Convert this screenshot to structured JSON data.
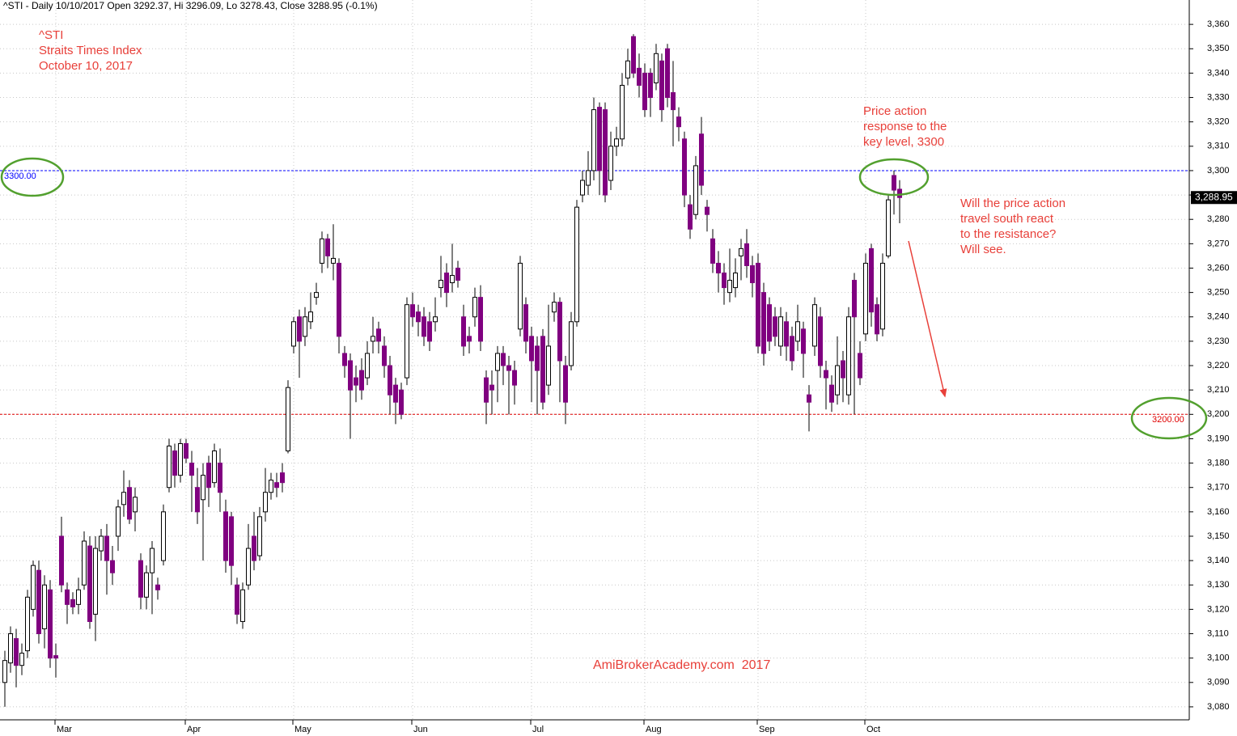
{
  "chart_data": {
    "type": "candlestick",
    "header": "^STI - Daily 10/10/2017 Open 3292.37, Hi 3296.09, Lo 3278.43, Close 3288.95 (-0.1%)",
    "title_lines": [
      "^STI",
      "Straits Times Index",
      "October 10, 2017"
    ],
    "annotations": [
      {
        "lines": [
          "Price action",
          "response to the",
          "key level, 3300"
        ]
      },
      {
        "lines": [
          "Will the price action",
          "travel south react",
          "to the resistance?",
          "Will see."
        ]
      }
    ],
    "watermark": "AmiBrokerAcademy.com  2017",
    "up_color": "#ffffff",
    "down_color": "#800080",
    "categories": [
      null,
      null,
      null,
      null,
      null,
      null,
      null,
      null,
      null,
      "Mar",
      null,
      null,
      null,
      null,
      null,
      null,
      null,
      null,
      null,
      null,
      null,
      null,
      null,
      null,
      null,
      null,
      null,
      null,
      null,
      null,
      null,
      null,
      "Apr",
      null,
      null,
      null,
      null,
      null,
      null,
      null,
      null,
      null,
      null,
      null,
      null,
      null,
      null,
      null,
      null,
      null,
      null,
      "May",
      null,
      null,
      null,
      null,
      null,
      null,
      null,
      null,
      null,
      null,
      null,
      null,
      null,
      null,
      null,
      null,
      null,
      null,
      null,
      null,
      "Jun",
      null,
      null,
      null,
      null,
      null,
      null,
      null,
      null,
      null,
      null,
      null,
      null,
      null,
      null,
      null,
      null,
      null,
      null,
      null,
      null,
      "Jul",
      null,
      null,
      null,
      null,
      null,
      null,
      null,
      null,
      null,
      null,
      null,
      null,
      null,
      null,
      null,
      null,
      null,
      null,
      null,
      "Aug",
      null,
      null,
      null,
      null,
      null,
      null,
      null,
      null,
      null,
      null,
      null,
      null,
      null,
      null,
      null,
      null,
      null,
      null,
      null,
      "Sep",
      null,
      null,
      null,
      null,
      null,
      null,
      null,
      null,
      null,
      null,
      null,
      null,
      null,
      null,
      null,
      null,
      null,
      null,
      "Oct",
      null,
      null,
      null,
      null,
      null,
      null
    ],
    "open": [
      3090,
      3098,
      3108,
      3097,
      3103,
      3120,
      3136,
      3112,
      3128,
      3101,
      3150,
      3128,
      3124,
      3122,
      3130,
      3146,
      3118,
      3144,
      3150,
      3140,
      3150,
      3163,
      3170,
      3160,
      3140,
      3125,
      3135,
      3130,
      3140,
      3170,
      3185,
      3175,
      3188,
      3180,
      3170,
      3165,
      3180,
      3172,
      3180,
      3160,
      3158,
      3130,
      3115,
      3130,
      3150,
      3142,
      3160,
      3168,
      3172,
      3176,
      3185,
      3228,
      3240,
      3232,
      3238,
      3248,
      3262,
      3272,
      3262,
      3262,
      3225,
      3222,
      3215,
      3218,
      3215,
      3230,
      3235,
      3228,
      3220,
      3212,
      3210,
      3215,
      3245,
      3242,
      3240,
      3238,
      3238,
      3252,
      3258,
      3254,
      3260,
      3240,
      3232,
      3240,
      3248,
      3215,
      3212,
      3218,
      3225,
      3220,
      3218,
      3235,
      3245,
      3232,
      3228,
      3232,
      3212,
      3242,
      3246,
      3220,
      3220,
      3238,
      3290,
      3294,
      3300,
      3326,
      3325,
      3296,
      3310,
      3313,
      3338,
      3355,
      3342,
      3340,
      3340,
      3336,
      3345,
      3350,
      3332,
      3322,
      3313,
      3286,
      3282,
      3315,
      3285,
      3272,
      3262,
      3258,
      3250,
      3252,
      3265,
      3270,
      3261,
      3262,
      3250,
      3245,
      3240,
      3228,
      3238,
      3232,
      3230,
      3235,
      3208,
      3228,
      3240,
      3218,
      3212,
      3208,
      3222,
      3208,
      3255,
      3225,
      3233,
      3268,
      3245,
      3235,
      3265,
      3298,
      3292.37
    ],
    "high": [
      3103,
      3113,
      3112,
      3106,
      3128,
      3140,
      3140,
      3134,
      3132,
      3106,
      3158,
      3131,
      3127,
      3133,
      3152,
      3150,
      3150,
      3153,
      3155,
      3146,
      3165,
      3177,
      3173,
      3170,
      3143,
      3138,
      3148,
      3133,
      3163,
      3190,
      3188,
      3190,
      3190,
      3185,
      3178,
      3180,
      3183,
      3188,
      3186,
      3165,
      3160,
      3133,
      3131,
      3155,
      3160,
      3162,
      3178,
      3176,
      3176,
      3180,
      3214,
      3240,
      3243,
      3244,
      3250,
      3254,
      3275,
      3274,
      3278,
      3264,
      3228,
      3225,
      3220,
      3223,
      3230,
      3240,
      3238,
      3232,
      3224,
      3215,
      3213,
      3248,
      3250,
      3245,
      3244,
      3242,
      3248,
      3265,
      3262,
      3270,
      3263,
      3245,
      3236,
      3252,
      3253,
      3218,
      3218,
      3228,
      3228,
      3224,
      3222,
      3265,
      3248,
      3236,
      3232,
      3235,
      3245,
      3250,
      3248,
      3224,
      3242,
      3288,
      3300,
      3308,
      3330,
      3328,
      3328,
      3316,
      3318,
      3340,
      3350,
      3356,
      3348,
      3344,
      3342,
      3352,
      3348,
      3352,
      3345,
      3326,
      3316,
      3290,
      3306,
      3322,
      3288,
      3276,
      3267,
      3262,
      3268,
      3264,
      3272,
      3276,
      3265,
      3266,
      3254,
      3248,
      3244,
      3244,
      3242,
      3236,
      3245,
      3238,
      3212,
      3248,
      3244,
      3222,
      3216,
      3232,
      3226,
      3244,
      3258,
      3230,
      3266,
      3270,
      3248,
      3266,
      3290,
      3300,
      3296.09
    ],
    "low": [
      3080,
      3094,
      3088,
      3093,
      3100,
      3117,
      3106,
      3104,
      3096,
      3092,
      3127,
      3114,
      3118,
      3118,
      3128,
      3112,
      3107,
      3140,
      3126,
      3130,
      3144,
      3158,
      3155,
      3152,
      3120,
      3120,
      3118,
      3124,
      3138,
      3168,
      3170,
      3172,
      3180,
      3160,
      3155,
      3140,
      3162,
      3170,
      3160,
      3135,
      3130,
      3114,
      3112,
      3128,
      3136,
      3140,
      3156,
      3165,
      3166,
      3168,
      3184,
      3225,
      3215,
      3228,
      3235,
      3245,
      3258,
      3260,
      3255,
      3225,
      3215,
      3190,
      3205,
      3206,
      3212,
      3225,
      3225,
      3215,
      3200,
      3196,
      3198,
      3212,
      3236,
      3232,
      3228,
      3226,
      3234,
      3248,
      3244,
      3250,
      3252,
      3224,
      3225,
      3236,
      3226,
      3196,
      3200,
      3205,
      3212,
      3200,
      3204,
      3232,
      3225,
      3205,
      3200,
      3202,
      3208,
      3238,
      3205,
      3196,
      3218,
      3236,
      3287,
      3290,
      3296,
      3290,
      3287,
      3292,
      3306,
      3310,
      3335,
      3338,
      3330,
      3322,
      3322,
      3333,
      3320,
      3326,
      3310,
      3312,
      3285,
      3272,
      3280,
      3290,
      3275,
      3258,
      3250,
      3245,
      3246,
      3248,
      3255,
      3256,
      3248,
      3225,
      3220,
      3226,
      3228,
      3224,
      3222,
      3218,
      3226,
      3215,
      3193,
      3224,
      3215,
      3202,
      3201,
      3204,
      3205,
      3204,
      3200,
      3212,
      3230,
      3236,
      3230,
      3232,
      3264,
      3282,
      3278.43
    ],
    "close": [
      3099,
      3110,
      3097,
      3102,
      3125,
      3138,
      3110,
      3130,
      3100,
      3100,
      3130,
      3122,
      3121,
      3128,
      3148,
      3115,
      3145,
      3150,
      3140,
      3135,
      3162,
      3168,
      3157,
      3166,
      3125,
      3135,
      3145,
      3128,
      3160,
      3187,
      3175,
      3188,
      3182,
      3175,
      3160,
      3175,
      3170,
      3185,
      3168,
      3140,
      3138,
      3118,
      3128,
      3145,
      3140,
      3158,
      3168,
      3173,
      3170,
      3172,
      3211,
      3238,
      3230,
      3240,
      3242,
      3250,
      3272,
      3265,
      3264,
      3232,
      3220,
      3210,
      3212,
      3210,
      3225,
      3232,
      3230,
      3220,
      3208,
      3205,
      3200,
      3245,
      3240,
      3238,
      3232,
      3230,
      3240,
      3255,
      3250,
      3257,
      3255,
      3228,
      3230,
      3248,
      3230,
      3205,
      3210,
      3225,
      3220,
      3218,
      3212,
      3262,
      3230,
      3222,
      3218,
      3205,
      3228,
      3246,
      3222,
      3205,
      3238,
      3285,
      3296,
      3300,
      3325,
      3300,
      3290,
      3310,
      3313,
      3335,
      3345,
      3340,
      3335,
      3325,
      3330,
      3348,
      3325,
      3330,
      3325,
      3318,
      3290,
      3276,
      3302,
      3294,
      3282,
      3262,
      3258,
      3252,
      3255,
      3258,
      3268,
      3261,
      3254,
      3228,
      3225,
      3230,
      3232,
      3240,
      3228,
      3222,
      3238,
      3225,
      3205,
      3245,
      3220,
      3215,
      3205,
      3220,
      3215,
      3240,
      3240,
      3215,
      3262,
      3242,
      3233,
      3262,
      3288,
      3292,
      3288.95
    ],
    "levels": [
      {
        "value": 3300,
        "label": "3300.00",
        "color": "#0000ff"
      },
      {
        "value": 3200,
        "label": "3200.00",
        "color": "#e00000"
      }
    ],
    "last_price": {
      "value": 3288.95,
      "label": "3,288.95"
    },
    "ylim": [
      3075,
      3370
    ],
    "yticks": [
      {
        "value": 3080,
        "label": "3,080"
      },
      {
        "value": 3090,
        "label": "3,090"
      },
      {
        "value": 3100,
        "label": "3,100"
      },
      {
        "value": 3110,
        "label": "3,110"
      },
      {
        "value": 3120,
        "label": "3,120"
      },
      {
        "value": 3130,
        "label": "3,130"
      },
      {
        "value": 3140,
        "label": "3,140"
      },
      {
        "value": 3150,
        "label": "3,150"
      },
      {
        "value": 3160,
        "label": "3,160"
      },
      {
        "value": 3170,
        "label": "3,170"
      },
      {
        "value": 3180,
        "label": "3,180"
      },
      {
        "value": 3190,
        "label": "3,190"
      },
      {
        "value": 3200,
        "label": "3,200"
      },
      {
        "value": 3210,
        "label": "3,210"
      },
      {
        "value": 3220,
        "label": "3,220"
      },
      {
        "value": 3230,
        "label": "3,230"
      },
      {
        "value": 3240,
        "label": "3,240"
      },
      {
        "value": 3250,
        "label": "3,250"
      },
      {
        "value": 3260,
        "label": "3,260"
      },
      {
        "value": 3270,
        "label": "3,270"
      },
      {
        "value": 3280,
        "label": "3,280"
      },
      {
        "value": 3290,
        "label": "3,290"
      },
      {
        "value": 3300,
        "label": "3,300"
      },
      {
        "value": 3310,
        "label": "3,310"
      },
      {
        "value": 3320,
        "label": "3,320"
      },
      {
        "value": 3330,
        "label": "3,330"
      },
      {
        "value": 3340,
        "label": "3,340"
      },
      {
        "value": 3350,
        "label": "3,350"
      },
      {
        "value": 3360,
        "label": "3,360"
      }
    ],
    "grid": true
  }
}
